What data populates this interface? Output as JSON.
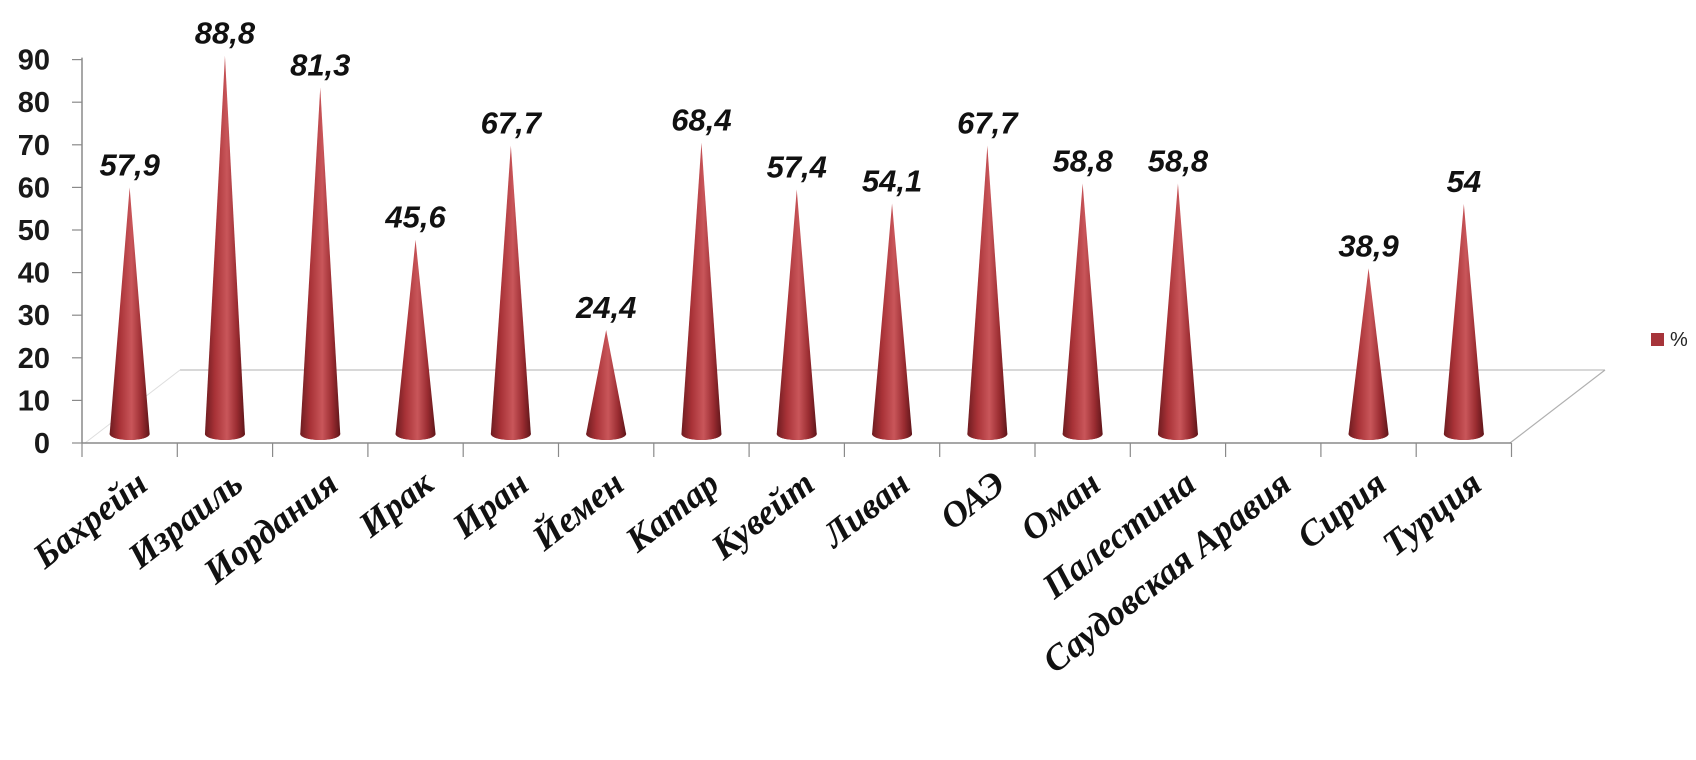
{
  "chart_data": {
    "type": "bar",
    "style": "3d-cone",
    "categories": [
      "Бахрейн",
      "Израиль",
      "Иордания",
      "Ирак",
      "Иран",
      "Йемен",
      "Катар",
      "Кувейт",
      "Ливан",
      "ОАЭ",
      "Оман",
      "Палестина",
      "Саудовская Аравия",
      "Сирия",
      "Турция"
    ],
    "series": [
      {
        "name": "%",
        "values": [
          57.9,
          88.8,
          81.3,
          45.6,
          67.7,
          24.4,
          68.4,
          57.4,
          54.1,
          67.7,
          58.8,
          58.8,
          null,
          38.9,
          54
        ],
        "labels": [
          "57,9",
          "88,8",
          "81,3",
          "45,6",
          "67,7",
          "24,4",
          "68,4",
          "57,4",
          "54,1",
          "67,7",
          "58,8",
          "58,8",
          "",
          "38,9",
          "54"
        ],
        "color": "#A6343A"
      }
    ],
    "ylim": [
      0,
      90
    ],
    "yticks": [
      "0",
      "10",
      "20",
      "30",
      "40",
      "50",
      "60",
      "70",
      "80",
      "90"
    ],
    "legend": {
      "position": "right",
      "entries": [
        "%"
      ]
    },
    "grid": false
  }
}
